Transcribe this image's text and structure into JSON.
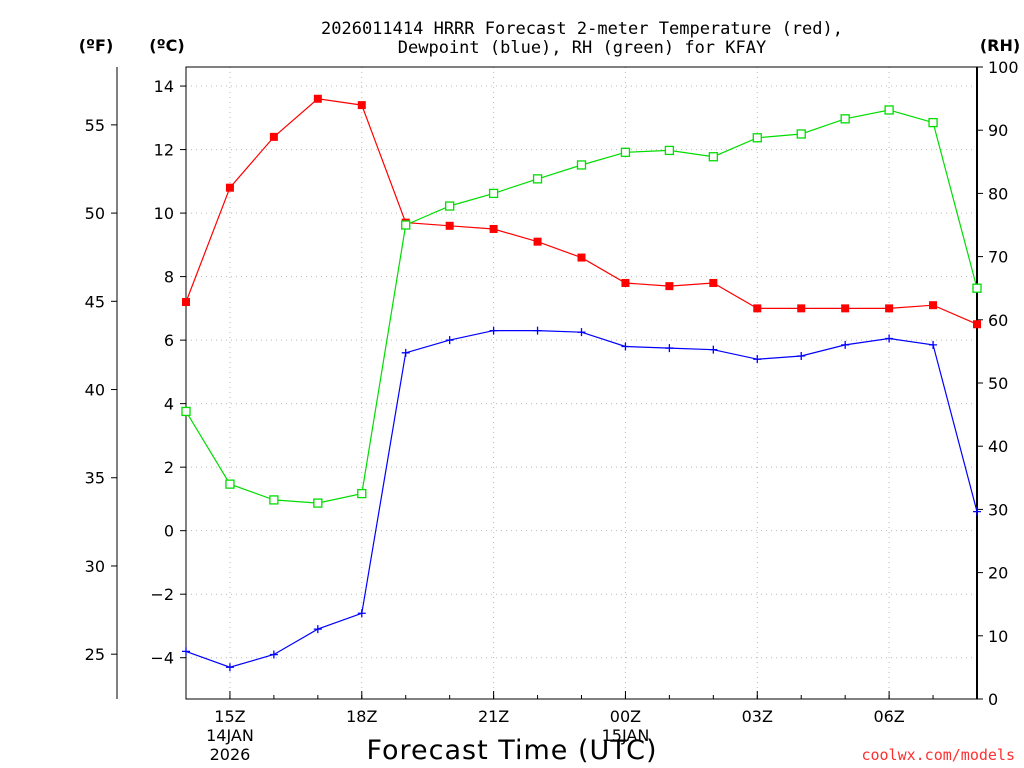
{
  "chart_data": {
    "type": "line",
    "title_line1": "2026011414 HRRR Forecast 2-meter Temperature (red),",
    "title_line2": "Dewpoint (blue), RH (green) for KFAY",
    "unit_f": "(ºF)",
    "unit_c": "(ºC)",
    "unit_rh": "(RH)",
    "xlabel": "Forecast Time (UTC)",
    "credit": "coolwx.com/models",
    "x_hours": [
      14,
      15,
      16,
      17,
      18,
      19,
      20,
      21,
      22,
      23,
      24,
      25,
      26,
      27,
      28,
      29,
      30,
      31,
      32
    ],
    "x_ticks": [
      {
        "hour": 15,
        "label": "15Z",
        "sub1": "14JAN",
        "sub2": "2026"
      },
      {
        "hour": 18,
        "label": "18Z",
        "sub1": "",
        "sub2": ""
      },
      {
        "hour": 21,
        "label": "21Z",
        "sub1": "",
        "sub2": ""
      },
      {
        "hour": 24,
        "label": "00Z",
        "sub1": "15JAN",
        "sub2": ""
      },
      {
        "hour": 27,
        "label": "03Z",
        "sub1": "",
        "sub2": ""
      },
      {
        "hour": 30,
        "label": "06Z",
        "sub1": "",
        "sub2": ""
      }
    ],
    "xlim": [
      14,
      32
    ],
    "ylim_c": [
      -5.3,
      14.6
    ],
    "ylim_rh": [
      0,
      100
    ],
    "yticks_c": [
      "-4",
      "-2",
      "0",
      "2",
      "4",
      "6",
      "8",
      "10",
      "12",
      "14"
    ],
    "yticks_f": [
      "25",
      "30",
      "35",
      "40",
      "45",
      "50",
      "55"
    ],
    "yticks_rh": [
      "0",
      "10",
      "20",
      "30",
      "40",
      "50",
      "60",
      "70",
      "80",
      "90",
      "100"
    ],
    "series": [
      {
        "name": "2-meter Temperature",
        "unit": "C",
        "color": "#ff0000",
        "marker": "filled-square",
        "values": [
          7.2,
          10.8,
          12.4,
          13.6,
          13.4,
          9.7,
          9.6,
          9.5,
          9.1,
          8.6,
          7.8,
          7.7,
          7.8,
          7.0,
          7.0,
          7.0,
          7.0,
          7.1,
          6.5
        ]
      },
      {
        "name": "Dewpoint",
        "unit": "C",
        "color": "#0000ff",
        "marker": "plus",
        "values": [
          -3.8,
          -4.3,
          -3.9,
          -3.1,
          -2.6,
          5.6,
          6.0,
          6.3,
          6.3,
          6.25,
          5.8,
          5.75,
          5.7,
          5.4,
          5.5,
          5.85,
          6.05,
          5.85,
          0.6
        ]
      },
      {
        "name": "RH",
        "unit": "%",
        "color": "#00dd00",
        "marker": "open-square",
        "values": [
          45.5,
          34.0,
          31.5,
          31.0,
          32.5,
          75.0,
          78.0,
          80.0,
          82.3,
          84.5,
          86.5,
          86.8,
          85.8,
          88.8,
          89.4,
          91.8,
          93.2,
          91.2,
          65.0
        ]
      }
    ]
  }
}
